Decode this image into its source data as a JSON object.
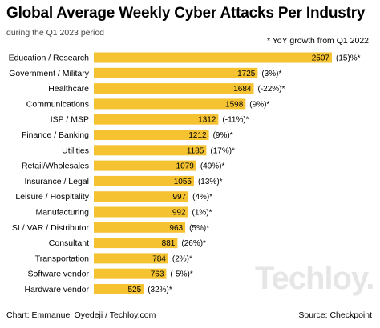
{
  "header": {
    "title": "Global Average Weekly Cyber Attacks Per Industry",
    "subtitle": "during the Q1 2023 period"
  },
  "legend": {
    "growth_note": "* YoY growth from Q1 2022"
  },
  "watermark": "Techloy.",
  "footer": {
    "credit": "Chart: Emmanuel Oyedeji / Techloy.com",
    "source": "Source: Checkpoint"
  },
  "colors": {
    "bar": "#f5c332",
    "text": "#000000"
  },
  "chart_data": {
    "type": "bar",
    "orientation": "horizontal",
    "title": "Global Average Weekly Cyber Attacks Per Industry",
    "subtitle": "during the Q1 2023 period",
    "note": "* YoY growth from Q1 2022",
    "categories": [
      "Education / Research",
      "Government / Military",
      "Healthcare",
      "Communications",
      "ISP / MSP",
      "Finance / Banking",
      "Utilities",
      "Retail/Wholesales",
      "Insurance / Legal",
      "Leisure / Hospitality",
      "Manufacturing",
      "SI / VAR / Distributor",
      "Consultant",
      "Transportation",
      "Software vendor",
      "Hardware vendor"
    ],
    "values": [
      2507,
      1725,
      1684,
      1598,
      1312,
      1212,
      1185,
      1079,
      1055,
      997,
      992,
      963,
      881,
      784,
      763,
      525
    ],
    "growth_labels": [
      "(15)%*",
      "(3%)*",
      "(-22%)*",
      "(9%)*",
      "(-11%)*",
      "(9%)*",
      "(17%)*",
      "(49%)*",
      "(13%)*",
      "(4%)*",
      "(1%)*",
      "(5%)*",
      "(26%)*",
      "(2%)*",
      "(-5%)*",
      "(32%)*"
    ],
    "xlim": [
      0,
      2507
    ],
    "grid": false,
    "legend": "none"
  }
}
